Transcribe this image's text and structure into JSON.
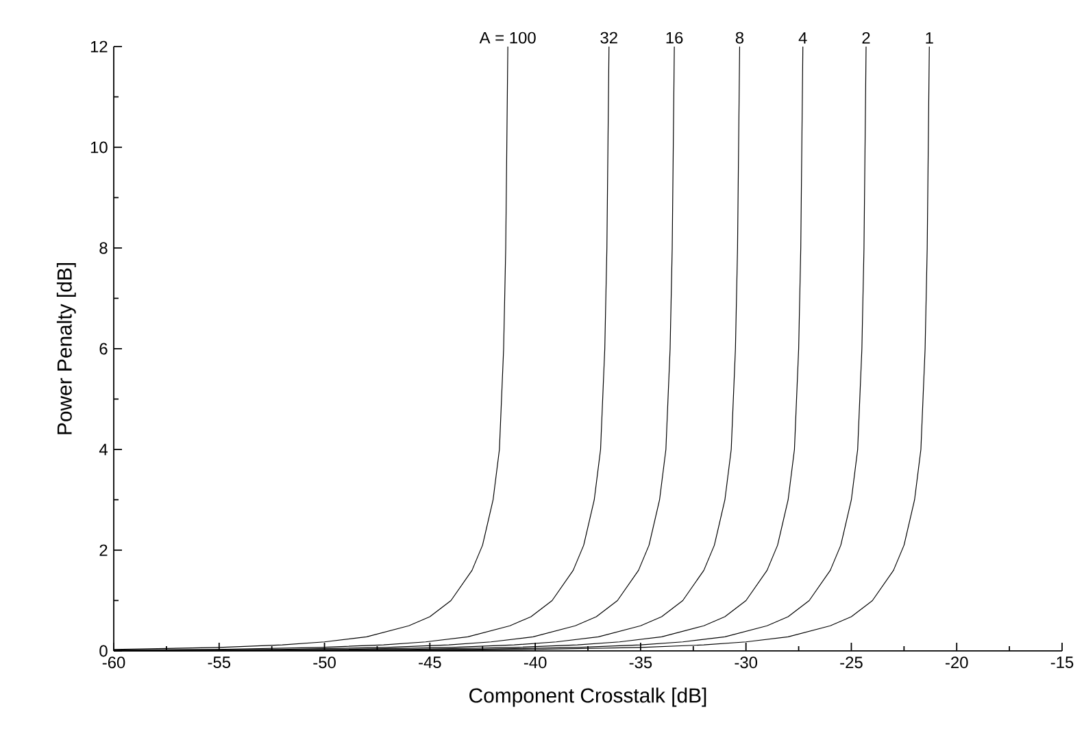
{
  "chart_data": {
    "type": "line",
    "xlabel": "Component Crosstalk [dB]",
    "ylabel": "Power Penalty [dB]",
    "xlim": [
      -60,
      -15
    ],
    "ylim": [
      0,
      12
    ],
    "xticks": [
      -60,
      -55,
      -50,
      -45,
      -40,
      -35,
      -30,
      -25,
      -20,
      -15
    ],
    "yticks": [
      0,
      2,
      4,
      6,
      8,
      10,
      12
    ],
    "grid": false,
    "legend": false,
    "marker": "none",
    "line_style": "solid",
    "series": [
      {
        "name": "A = 100",
        "color": "#000000",
        "x": [
          -60,
          -55,
          -52,
          -50,
          -48,
          -46,
          -45,
          -44,
          -43,
          -42.5,
          -42,
          -41.7,
          -41.5,
          -41.4,
          -41.35,
          -41.3
        ],
        "values": [
          0.03,
          0.07,
          0.12,
          0.18,
          0.28,
          0.5,
          0.68,
          1.0,
          1.6,
          2.1,
          3.0,
          4.0,
          6,
          8,
          10,
          12
        ]
      },
      {
        "name": "32",
        "color": "#000000",
        "x": [
          -60,
          -55.2,
          -50.2,
          -47.2,
          -45.2,
          -43.2,
          -41.2,
          -40.2,
          -39.2,
          -38.2,
          -37.7,
          -37.2,
          -36.9,
          -36.7,
          -36.6,
          -36.55,
          -36.5
        ],
        "values": [
          0.019,
          0.03,
          0.07,
          0.12,
          0.18,
          0.28,
          0.5,
          0.68,
          1.0,
          1.6,
          2.1,
          3.0,
          4.0,
          6,
          8,
          10,
          12
        ]
      },
      {
        "name": "16",
        "color": "#000000",
        "x": [
          -60,
          -57.1,
          -52.1,
          -47.1,
          -44.1,
          -42.1,
          -40.1,
          -38.1,
          -37.1,
          -36.1,
          -35.1,
          -34.6,
          -34.1,
          -33.8,
          -33.6,
          -33.5,
          -33.45,
          -33.4
        ],
        "values": [
          0.013,
          0.018,
          0.03,
          0.07,
          0.12,
          0.18,
          0.28,
          0.5,
          0.68,
          1.0,
          1.6,
          2.1,
          3.0,
          4.0,
          6,
          8,
          10,
          12
        ]
      },
      {
        "name": "8",
        "color": "#000000",
        "x": [
          -60,
          -59,
          -54,
          -49,
          -44,
          -41,
          -39,
          -37,
          -35,
          -34,
          -33,
          -32,
          -31.5,
          -31,
          -30.7,
          -30.5,
          -30.4,
          -30.35,
          -30.3
        ],
        "values": [
          0.009,
          0.01,
          0.018,
          0.03,
          0.07,
          0.12,
          0.18,
          0.28,
          0.5,
          0.68,
          1.0,
          1.6,
          2.1,
          3.0,
          4.0,
          6,
          8,
          10,
          12
        ]
      },
      {
        "name": "4",
        "color": "#000000",
        "x": [
          -60,
          -56,
          -51,
          -46,
          -41,
          -38,
          -36,
          -34,
          -32,
          -31,
          -30,
          -29,
          -28.5,
          -28,
          -27.7,
          -27.5,
          -27.4,
          -27.35,
          -27.3
        ],
        "values": [
          0.007,
          0.01,
          0.018,
          0.03,
          0.07,
          0.12,
          0.18,
          0.28,
          0.5,
          0.68,
          1.0,
          1.6,
          2.1,
          3.0,
          4.0,
          6,
          8,
          10,
          12
        ]
      },
      {
        "name": "2",
        "color": "#000000",
        "x": [
          -60,
          -58,
          -53,
          -48,
          -43,
          -38,
          -35,
          -33,
          -31,
          -29,
          -28,
          -27,
          -26,
          -25.5,
          -25,
          -24.7,
          -24.5,
          -24.4,
          -24.35,
          -24.3
        ],
        "values": [
          0.004,
          0.005,
          0.01,
          0.018,
          0.03,
          0.07,
          0.12,
          0.18,
          0.28,
          0.5,
          0.68,
          1.0,
          1.6,
          2.1,
          3.0,
          4.0,
          6,
          8,
          10,
          12
        ]
      },
      {
        "name": "1",
        "color": "#000000",
        "x": [
          -60,
          -55,
          -50,
          -45,
          -40,
          -35,
          -32,
          -30,
          -28,
          -26,
          -25,
          -24,
          -23,
          -22.5,
          -22,
          -21.7,
          -21.5,
          -21.4,
          -21.35,
          -21.3
        ],
        "values": [
          0.003,
          0.005,
          0.01,
          0.018,
          0.03,
          0.07,
          0.12,
          0.18,
          0.28,
          0.5,
          0.68,
          1.0,
          1.6,
          2.1,
          3.0,
          4.0,
          6,
          8,
          10,
          12
        ]
      }
    ]
  }
}
